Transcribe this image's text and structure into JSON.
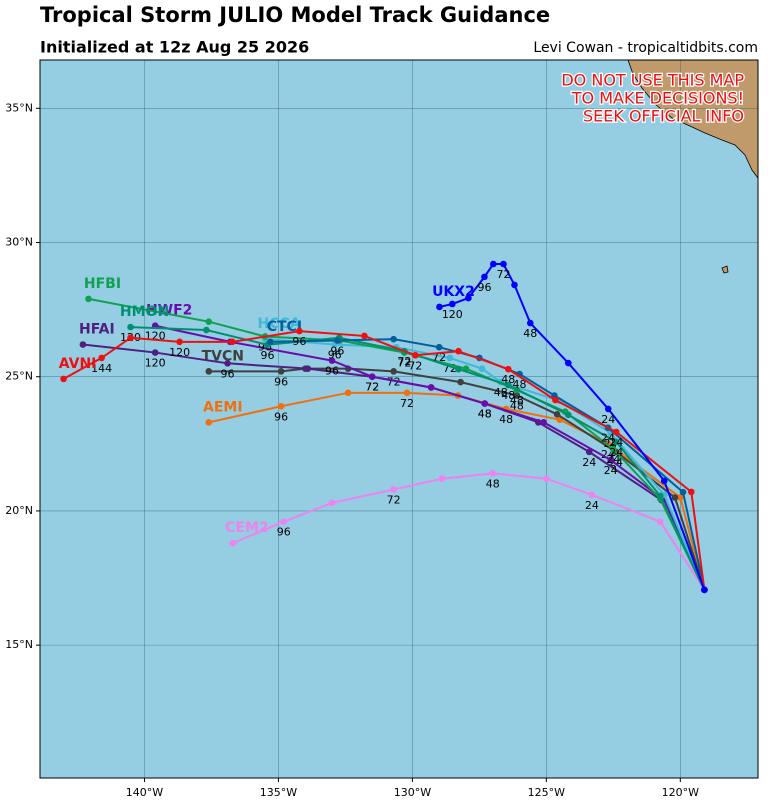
{
  "chart_data": {
    "type": "map",
    "title": "Tropical Storm JULIO Model Track Guidance",
    "subtitle": "Initialized at 12z Aug 25 2026",
    "credit": "Levi Cowan - tropicaltidbits.com",
    "warning": [
      "DO NOT USE THIS MAP",
      "TO MAKE DECISIONS!",
      "SEEK OFFICIAL INFO"
    ],
    "xlim": [
      -143.9,
      -117.1
    ],
    "ylim": [
      10.05,
      36.8
    ],
    "xticks": [
      {
        "value": -140,
        "label": "140°W"
      },
      {
        "value": -135,
        "label": "135°W"
      },
      {
        "value": -130,
        "label": "130°W"
      },
      {
        "value": -125,
        "label": "125°W"
      },
      {
        "value": -120,
        "label": "120°W"
      }
    ],
    "yticks": [
      {
        "value": 15,
        "label": "15°N"
      },
      {
        "value": 20,
        "label": "20°N"
      },
      {
        "value": 25,
        "label": "25°N"
      },
      {
        "value": 30,
        "label": "30°N"
      },
      {
        "value": 35,
        "label": "35°N"
      }
    ],
    "grid": true,
    "series": [
      {
        "name": "CEM2",
        "color": "#ee82ee",
        "lon": [
          -119.1,
          -120.75,
          -123.3,
          -125.0,
          -127.0,
          -128.9,
          -130.7,
          -133.0,
          -134.8,
          -136.7
        ],
        "lat": [
          17.06,
          19.6,
          20.6,
          21.2,
          21.4,
          21.2,
          20.8,
          20.3,
          19.6,
          18.8
        ],
        "labels": [
          null,
          null,
          24,
          null,
          48,
          null,
          72,
          null,
          96,
          null
        ]
      },
      {
        "name": "AEMI",
        "color": "#f07010",
        "lon": [
          -119.1,
          -120.0,
          -122.7,
          -124.5,
          -126.5,
          -128.3,
          -130.2,
          -132.4,
          -134.9,
          -137.6
        ],
        "lat": [
          17.06,
          20.5,
          22.5,
          23.4,
          23.8,
          24.3,
          24.4,
          24.4,
          23.9,
          23.3
        ],
        "labels": [
          null,
          null,
          24,
          null,
          48,
          null,
          72,
          null,
          96,
          null
        ]
      },
      {
        "name": "TVCN",
        "color": "#404040",
        "lon": [
          -119.1,
          -120.2,
          -122.4,
          -124.6,
          -126.1,
          -128.2,
          -130.7,
          -132.4,
          -134.0,
          -134.9,
          -137.6
        ],
        "lat": [
          17.06,
          20.5,
          22.2,
          23.6,
          24.3,
          24.8,
          25.2,
          25.3,
          25.3,
          25.2,
          25.2
        ],
        "labels": [
          null,
          null,
          24,
          null,
          48,
          null,
          72,
          null,
          null,
          96,
          null
        ]
      },
      {
        "name": "HFAI",
        "color": "#502080",
        "lon": [
          -119.1,
          -120.7,
          -123.4,
          -125.3,
          -127.3,
          -129.3,
          -131.5,
          -133.9,
          -136.9,
          -139.6,
          -142.3
        ],
        "lat": [
          17.06,
          20.4,
          22.2,
          23.3,
          24.0,
          24.6,
          25.0,
          25.3,
          25.5,
          25.9,
          26.2
        ],
        "labels": [
          null,
          null,
          24,
          null,
          48,
          null,
          72,
          null,
          96,
          120,
          null
        ]
      },
      {
        "name": "HWF2",
        "color": "#6a0dad",
        "lon": [
          -119.1,
          -120.6,
          -122.6,
          -125.1,
          -127.3,
          -129.3,
          -131.5,
          -133.0,
          -136.8,
          -139.6
        ],
        "lat": [
          17.06,
          20.4,
          21.9,
          23.3,
          24.0,
          24.6,
          25.0,
          25.6,
          26.3,
          26.9
        ],
        "labels": [
          null,
          null,
          24,
          null,
          48,
          null,
          72,
          96,
          null,
          120
        ]
      },
      {
        "name": "HCCA",
        "color": "#40b8d8",
        "lon": [
          -119.1,
          -120.6,
          -122.6,
          -124.5,
          -126.7,
          -127.4,
          -128.6,
          -130.6,
          -132.9,
          -135.5
        ],
        "lat": [
          17.06,
          20.6,
          22.9,
          24.1,
          24.8,
          25.3,
          25.7,
          26.1,
          26.2,
          26.4
        ],
        "labels": [
          null,
          null,
          24,
          null,
          48,
          null,
          72,
          null,
          96,
          null
        ]
      },
      {
        "name": "HFBI",
        "color": "#10a050",
        "lon": [
          -119.1,
          -120.75,
          -122.5,
          -124.3,
          -126.1,
          -128.0,
          -130.3,
          -132.7,
          -135.5,
          -137.6,
          -142.09
        ],
        "lat": [
          17.06,
          20.45,
          22.3,
          23.7,
          24.5,
          25.3,
          25.9,
          26.35,
          26.5,
          27.05,
          27.9
        ],
        "labels": [
          null,
          null,
          24,
          null,
          48,
          null,
          72,
          null,
          96,
          null,
          null
        ]
      },
      {
        "name": "HMON",
        "color": "#009070",
        "lon": [
          -119.1,
          -120.75,
          -122.39,
          -124.18,
          -126.42,
          -128.28,
          -130.3,
          -132.73,
          -135.41,
          -137.69,
          -140.52
        ],
        "lat": [
          17.06,
          20.56,
          22.57,
          23.58,
          24.69,
          25.28,
          25.95,
          26.45,
          26.19,
          26.74,
          26.85
        ],
        "labels": [
          null,
          null,
          24,
          null,
          48,
          null,
          72,
          null,
          96,
          null,
          120
        ]
      },
      {
        "name": "CTCI",
        "color": "#005f9e",
        "lon": [
          -119.1,
          -119.9,
          -122.7,
          -124.7,
          -126.0,
          -127.5,
          -129.0,
          -130.7,
          -132.8,
          -135.3
        ],
        "lat": [
          17.06,
          20.7,
          23.1,
          24.3,
          25.1,
          25.7,
          26.1,
          26.4,
          26.35,
          26.3
        ],
        "labels": [
          null,
          null,
          24,
          null,
          48,
          null,
          72,
          null,
          96,
          null
        ]
      },
      {
        "name": "AVNI",
        "color": "#ee1010",
        "lon": [
          -119.1,
          -119.59,
          -122.39,
          -124.66,
          -126.42,
          -128.28,
          -129.89,
          -131.79,
          -134.22,
          -136.72,
          -138.69,
          -140.52,
          -141.6,
          -143.02
        ],
        "lat": [
          17.06,
          20.71,
          22.94,
          24.13,
          25.28,
          25.95,
          25.8,
          26.52,
          26.7,
          26.3,
          26.3,
          26.45,
          25.7,
          24.92
        ],
        "labels": [
          null,
          null,
          24,
          null,
          48,
          null,
          72,
          null,
          96,
          null,
          120,
          null,
          144,
          null
        ]
      },
      {
        "name": "UKX2",
        "color": "#0000ff",
        "lon": [
          -119.1,
          -120.6,
          -122.69,
          -124.18,
          -125.6,
          -126.19,
          -126.6,
          -126.98,
          -127.31,
          -127.91,
          -128.51,
          -128.99
        ],
        "lat": [
          17.06,
          21.12,
          23.8,
          25.51,
          27.0,
          28.42,
          29.2,
          29.2,
          28.72,
          27.93,
          27.71,
          27.6
        ],
        "labels": [
          null,
          null,
          24,
          null,
          48,
          null,
          72,
          null,
          96,
          null,
          120,
          null
        ]
      }
    ]
  }
}
